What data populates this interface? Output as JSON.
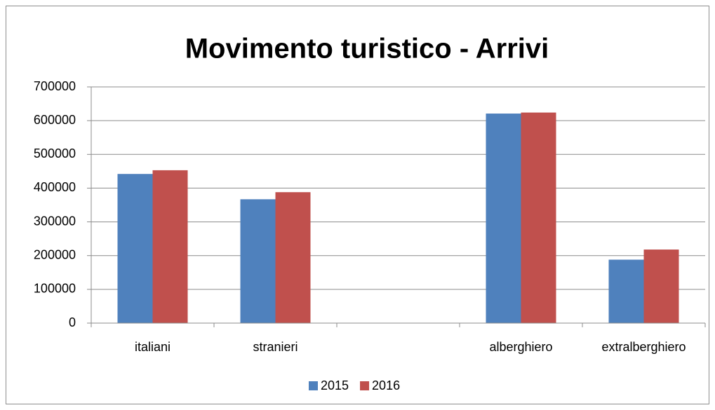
{
  "chart_data": {
    "type": "bar",
    "title": "Movimento turistico - Arrivi",
    "categories": [
      "italiani",
      "stranieri",
      null,
      "alberghiero",
      "extralberghiero"
    ],
    "series": [
      {
        "name": "2015",
        "color": "#4f81bd",
        "values": [
          442000,
          367000,
          null,
          621000,
          188000
        ]
      },
      {
        "name": "2016",
        "color": "#c0504d",
        "values": [
          453000,
          388000,
          null,
          624000,
          218000
        ]
      }
    ],
    "ylim": [
      0,
      700000
    ],
    "yticks": [
      0,
      100000,
      200000,
      300000,
      400000,
      500000,
      600000,
      700000
    ],
    "grid": true,
    "legend": "bottom"
  }
}
